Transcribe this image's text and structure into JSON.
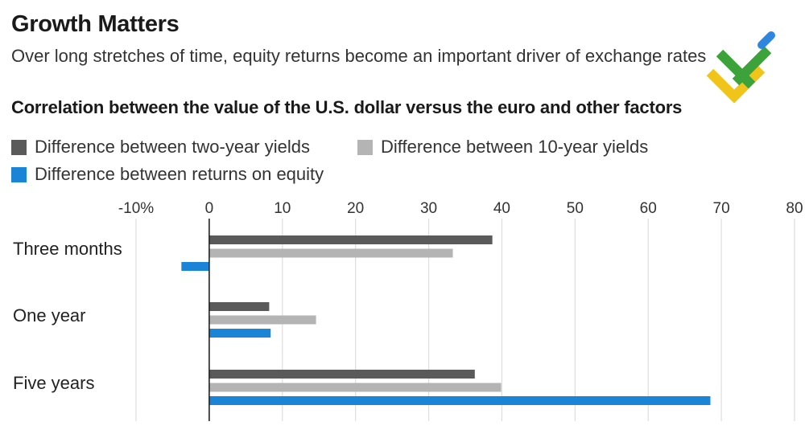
{
  "title": "Growth Matters",
  "subtitle": "Over long stretches of time, equity returns become an important driver of exchange rates",
  "colors": {
    "two_year": "#5a5a5a",
    "ten_year": "#b4b4b4",
    "equity": "#1a85d6",
    "gridline": "#dddddd",
    "zero_line": "#222222"
  },
  "chart_data": {
    "type": "bar",
    "orientation": "horizontal",
    "title": "Correlation between the value of the U.S. dollar versus the euro and other factors",
    "categories": [
      "Three months",
      "One year",
      "Five years"
    ],
    "series": [
      {
        "name": "Difference between two-year yields",
        "values": [
          38.7,
          8.2,
          36.3
        ]
      },
      {
        "name": "Difference between 10-year yields",
        "values": [
          33.3,
          14.6,
          39.9
        ]
      },
      {
        "name": "Difference between returns on equity",
        "values": [
          -3.8,
          8.4,
          68.5
        ]
      }
    ],
    "xlim": [
      -10,
      80
    ],
    "xticks": [
      -10,
      0,
      10,
      20,
      30,
      40,
      50,
      60,
      70,
      80
    ],
    "xtick_labels": [
      "-10%",
      "0",
      "10",
      "20",
      "30",
      "40",
      "50",
      "60",
      "70",
      "80"
    ],
    "xlabel": "",
    "ylabel": "",
    "grid": "vertical",
    "legend_position": "top-left"
  }
}
